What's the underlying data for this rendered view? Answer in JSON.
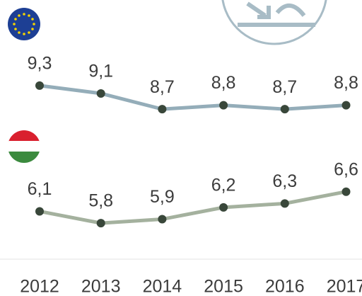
{
  "chart_data": {
    "type": "line",
    "categories": [
      "2012",
      "2013",
      "2014",
      "2015",
      "2016",
      "2017"
    ],
    "series": [
      {
        "color": "#94adb9",
        "values": [
          9.3,
          9.1,
          8.7,
          8.8,
          8.7,
          8.8
        ],
        "value_labels": [
          "9,3",
          "9,1",
          "8,7",
          "8,8",
          "8,7",
          "8,8"
        ]
      },
      {
        "color": "#a4b19e",
        "values": [
          6.1,
          5.8,
          5.9,
          6.2,
          6.3,
          6.6
        ],
        "value_labels": [
          "6,1",
          "5,8",
          "5,9",
          "6,2",
          "6,3",
          "6,6"
        ]
      }
    ]
  }
}
